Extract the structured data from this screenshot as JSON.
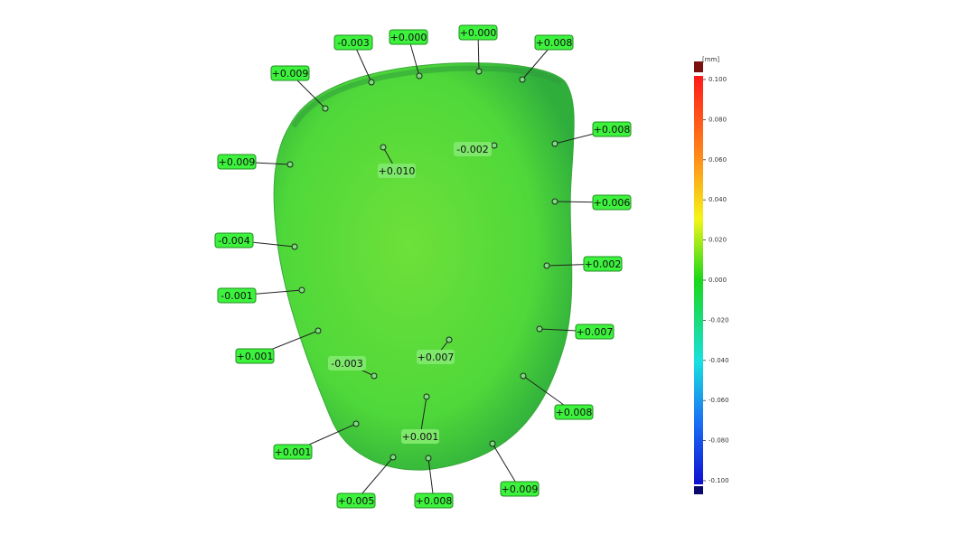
{
  "annotations": [
    "-0.003",
    "+0.000",
    "+0.000",
    "+0.008",
    "+0.009",
    "+0.009",
    "+0.010",
    "-0.002",
    "+0.008",
    "+0.006",
    "-0.004",
    "+0.002",
    "-0.001",
    "+0.001",
    "+0.007",
    "+0.007",
    "-0.003",
    "+0.008",
    "+0.001",
    "+0.001",
    "+0.005",
    "+0.008",
    "+0.009"
  ],
  "color_scale": {
    "unit": "[mm]",
    "ticks": [
      "0.100",
      "0.080",
      "0.060",
      "0.040",
      "0.020",
      "0.000",
      "-0.020",
      "-0.040",
      "-0.060",
      "-0.080",
      "-0.100"
    ]
  }
}
